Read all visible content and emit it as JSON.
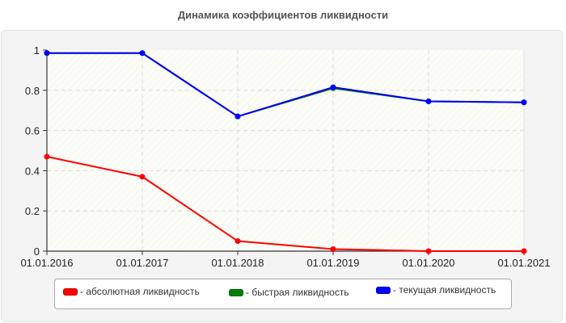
{
  "header": {
    "title": "Динамика коэффициентов ликвидности"
  },
  "legend": {
    "items": [
      {
        "label": "- абсолютная ликвидность",
        "color": "#ff0000"
      },
      {
        "label": "- быстрая ликвидность",
        "color": "#008000"
      },
      {
        "label": "- текущая ликвидность",
        "color": "#0000ff"
      }
    ]
  },
  "chart_data": {
    "type": "line",
    "title": "Динамика коэффициентов ликвидности",
    "xlabel": "",
    "ylabel": "",
    "categories": [
      "01.01.2016",
      "01.01.2017",
      "01.01.2018",
      "01.01.2019",
      "01.01.2020",
      "01.01.2021"
    ],
    "y_ticks": [
      "0",
      "0.2",
      "0.4",
      "0.6",
      "0.8",
      "1"
    ],
    "ylim": [
      0,
      1
    ],
    "grid": true,
    "legend_position": "bottom",
    "series": [
      {
        "name": "абсолютная ликвидность",
        "color": "#ff0000",
        "values": [
          0.47,
          0.37,
          0.05,
          0.01,
          0.0,
          0.0
        ]
      },
      {
        "name": "быстрая ликвидность",
        "color": "#008000",
        "values": [
          0.985,
          0.985,
          0.67,
          0.81,
          0.745,
          0.74
        ]
      },
      {
        "name": "текущая ликвидность",
        "color": "#0000ff",
        "values": [
          0.985,
          0.985,
          0.67,
          0.815,
          0.745,
          0.74
        ]
      }
    ]
  }
}
